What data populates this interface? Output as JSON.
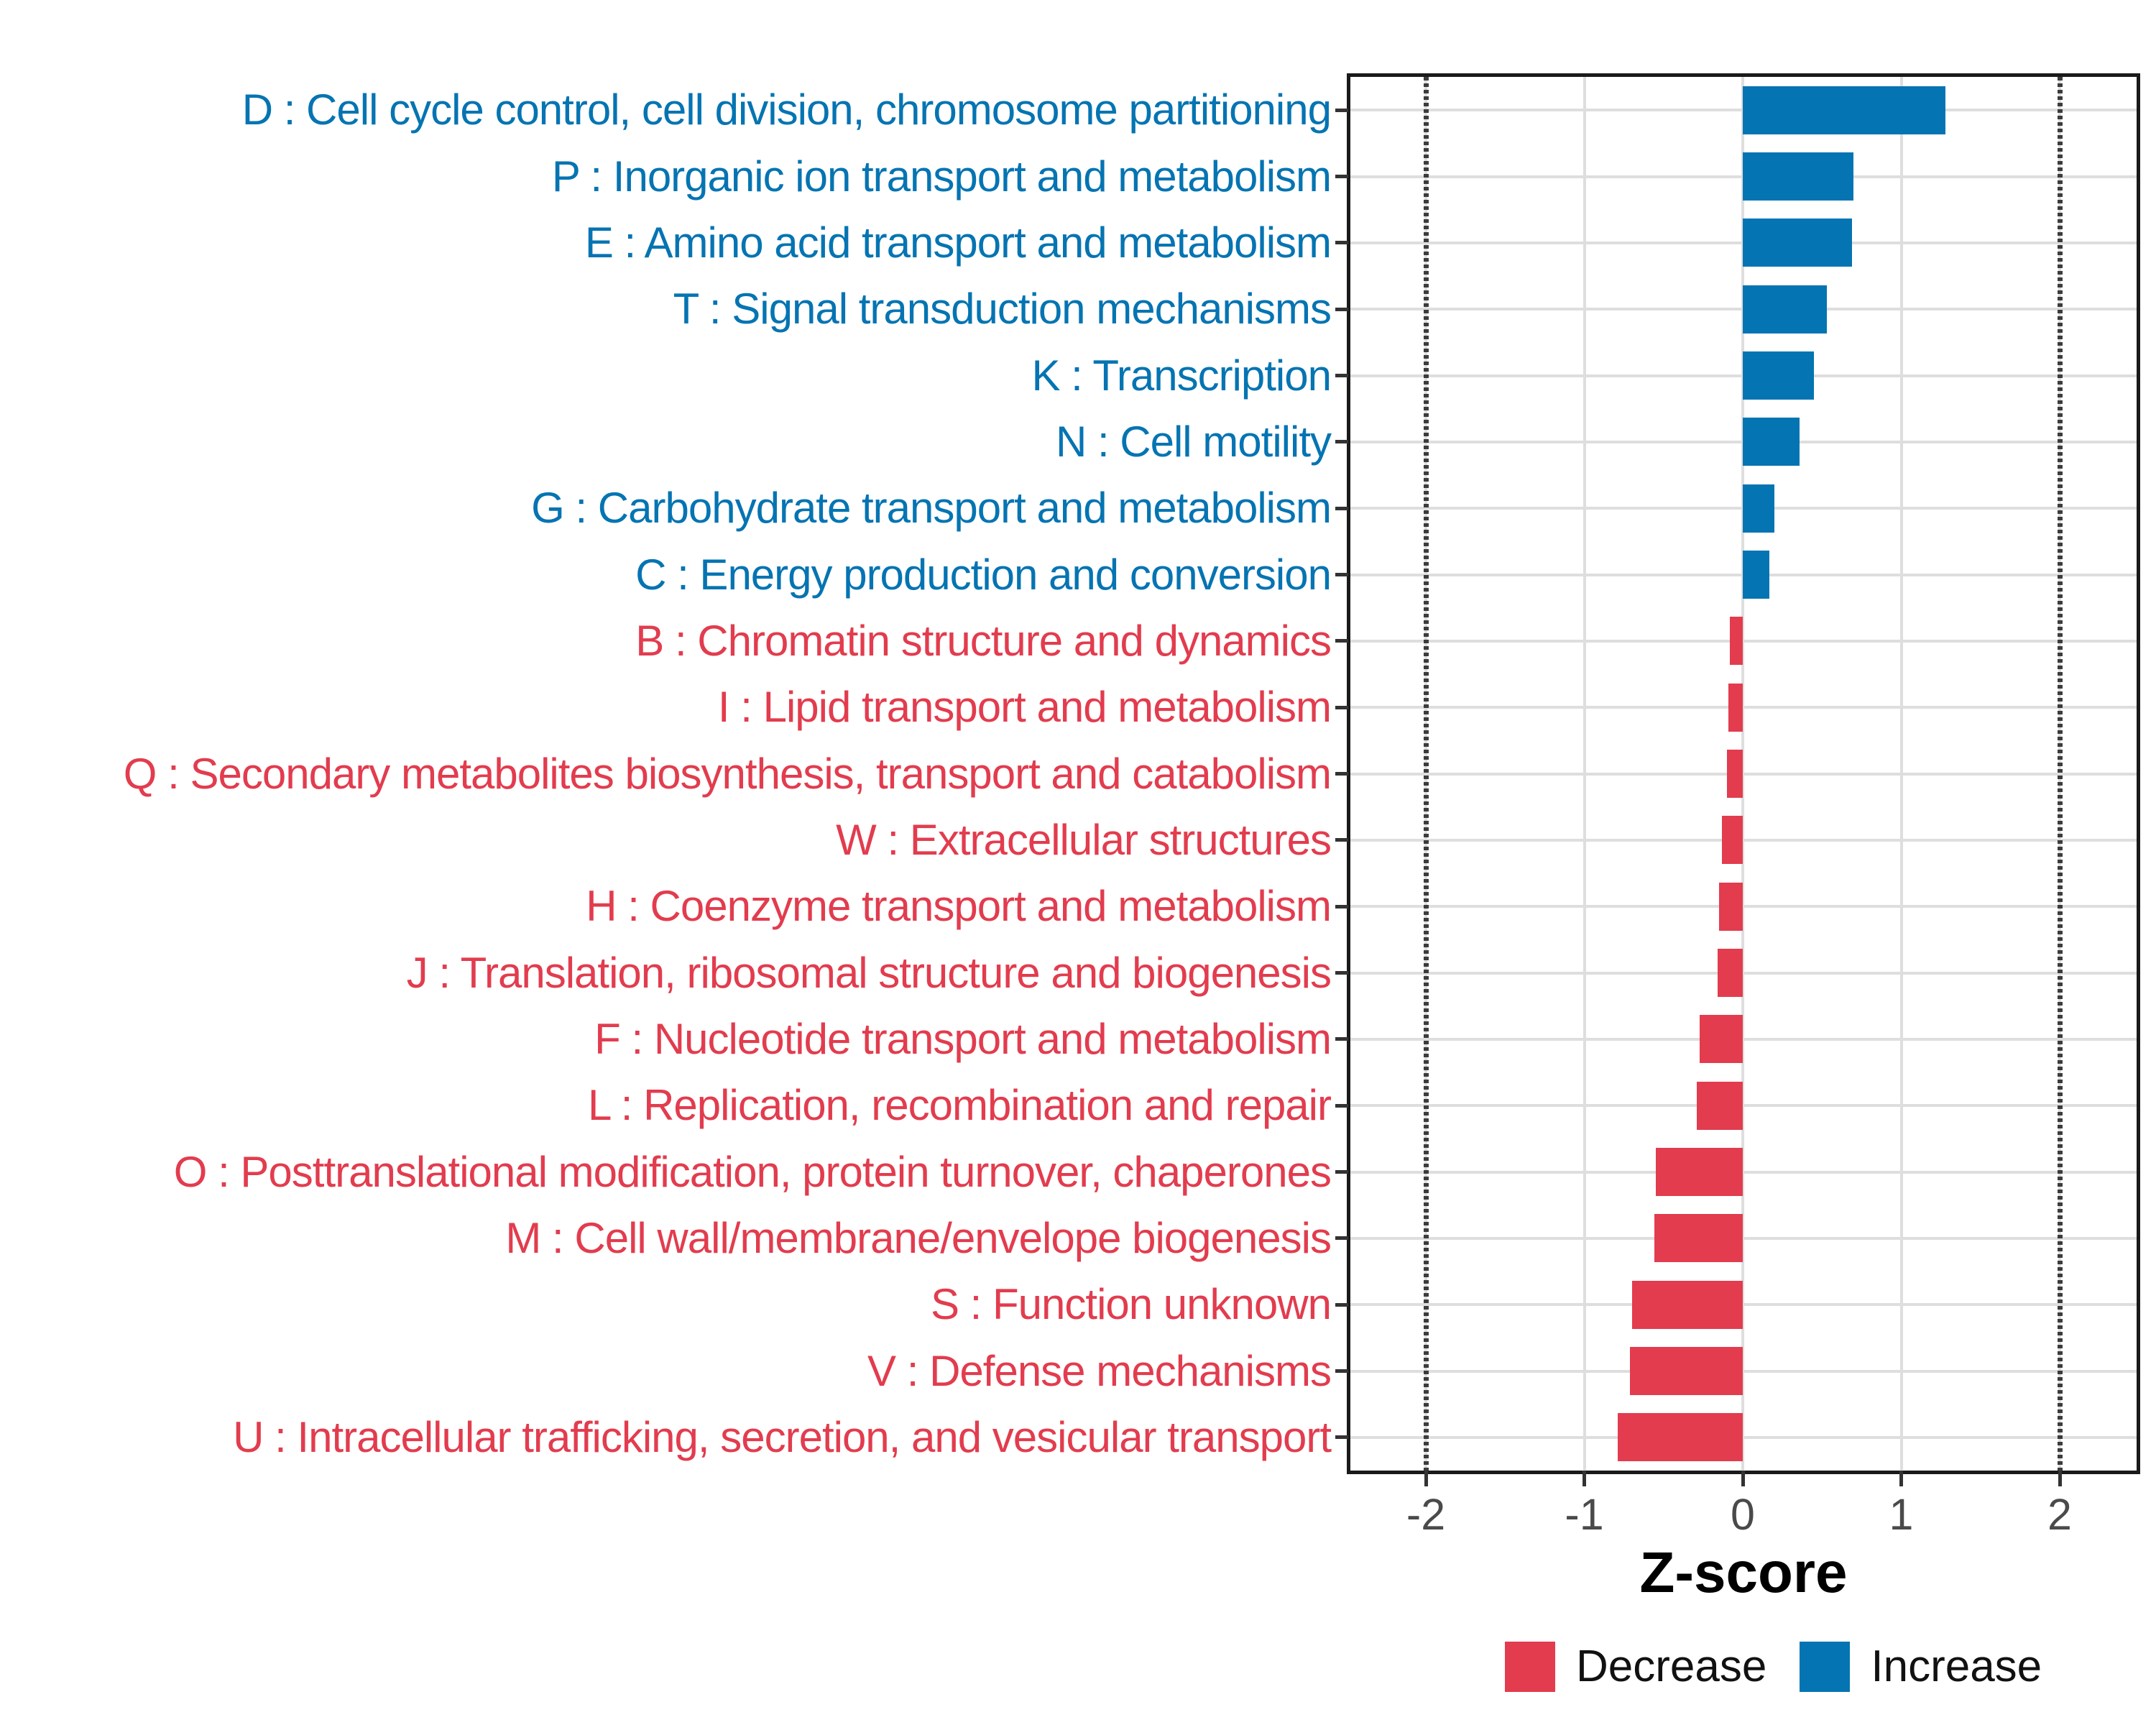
{
  "figure": {
    "background": "#ffffff"
  },
  "colors": {
    "increase": "#0574B2",
    "decrease": "#E23C4E",
    "grid_major": "#DEDEDE",
    "reference_dashed": "#3C3C3C",
    "panel_border": "#1A1A1A",
    "tick_mark": "#333333",
    "axis_tick_text": "#4A4A4A",
    "axis_title_text": "#000000"
  },
  "legend": [
    {
      "label": "Decrease",
      "color_key": "decrease"
    },
    {
      "label": "Increase",
      "color_key": "increase"
    }
  ],
  "chart_data": {
    "type": "bar",
    "orientation": "horizontal",
    "title": "",
    "xlabel": "Z-score",
    "ylabel": "",
    "xlim": [
      -2.37,
      2.5
    ],
    "x_ticks": [
      -2,
      -1,
      0,
      1,
      2
    ],
    "x_tick_labels": [
      "-2",
      "-1",
      "0",
      "1",
      "2"
    ],
    "reference_lines_dashed": [
      -2,
      2
    ],
    "grid": "major-on",
    "legend_position": "bottom",
    "series": [
      {
        "code": "D",
        "label": "D : Cell cycle control, cell division, chromosome partitioning",
        "value": 1.28,
        "group": "Increase"
      },
      {
        "code": "P",
        "label": "P : Inorganic ion transport and metabolism",
        "value": 0.7,
        "group": "Increase"
      },
      {
        "code": "E",
        "label": "E : Amino acid transport and metabolism",
        "value": 0.69,
        "group": "Increase"
      },
      {
        "code": "T",
        "label": "T : Signal transduction mechanisms",
        "value": 0.53,
        "group": "Increase"
      },
      {
        "code": "K",
        "label": "K : Transcription",
        "value": 0.45,
        "group": "Increase"
      },
      {
        "code": "N",
        "label": "N : Cell motility",
        "value": 0.36,
        "group": "Increase"
      },
      {
        "code": "G",
        "label": "G : Carbohydrate transport and metabolism",
        "value": 0.2,
        "group": "Increase"
      },
      {
        "code": "C",
        "label": "C : Energy production and conversion",
        "value": 0.17,
        "group": "Increase"
      },
      {
        "code": "B",
        "label": "B : Chromatin structure and dynamics",
        "value": -0.08,
        "group": "Decrease"
      },
      {
        "code": "I",
        "label": "I : Lipid transport and metabolism",
        "value": -0.09,
        "group": "Decrease"
      },
      {
        "code": "Q",
        "label": "Q : Secondary metabolites biosynthesis, transport and catabolism",
        "value": -0.1,
        "group": "Decrease"
      },
      {
        "code": "W",
        "label": "W : Extracellular structures",
        "value": -0.13,
        "group": "Decrease"
      },
      {
        "code": "H",
        "label": "H : Coenzyme transport and metabolism",
        "value": -0.15,
        "group": "Decrease"
      },
      {
        "code": "J",
        "label": "J : Translation, ribosomal structure and biogenesis",
        "value": -0.16,
        "group": "Decrease"
      },
      {
        "code": "F",
        "label": "F : Nucleotide transport and metabolism",
        "value": -0.27,
        "group": "Decrease"
      },
      {
        "code": "L",
        "label": "L : Replication, recombination and repair",
        "value": -0.29,
        "group": "Decrease"
      },
      {
        "code": "O",
        "label": "O : Posttranslational modification, protein turnover, chaperones",
        "value": -0.55,
        "group": "Decrease"
      },
      {
        "code": "M",
        "label": "M : Cell wall/membrane/envelope biogenesis",
        "value": -0.56,
        "group": "Decrease"
      },
      {
        "code": "S",
        "label": "S : Function unknown",
        "value": -0.7,
        "group": "Decrease"
      },
      {
        "code": "V",
        "label": "V : Defense mechanisms",
        "value": -0.71,
        "group": "Decrease"
      },
      {
        "code": "U",
        "label": "U : Intracellular trafficking, secretion, and vesicular transport",
        "value": -0.79,
        "group": "Decrease"
      }
    ]
  }
}
